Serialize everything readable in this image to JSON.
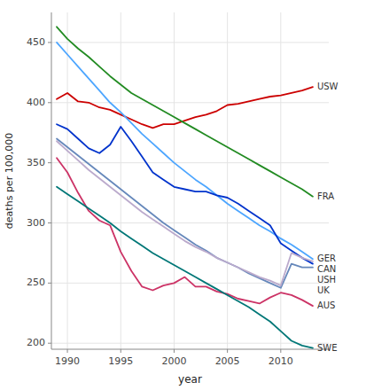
{
  "chart_data": {
    "type": "line",
    "title": "",
    "xlabel": "year",
    "ylabel": "deaths per 100,000",
    "x": [
      1989,
      1990,
      1991,
      1992,
      1993,
      1994,
      1995,
      1996,
      1997,
      1998,
      1999,
      2000,
      2001,
      2002,
      2003,
      2004,
      2005,
      2006,
      2007,
      2008,
      2009,
      2010,
      2011,
      2012,
      2013
    ],
    "xlim": [
      1988.5,
      2014.5
    ],
    "ylim": [
      195,
      475
    ],
    "xticks": [
      1990,
      1995,
      2000,
      2005,
      2010
    ],
    "yticks": [
      200,
      250,
      300,
      350,
      400,
      450
    ],
    "grid": true,
    "series": [
      {
        "name": "USW",
        "color": "#cc0000",
        "values": [
          403,
          408,
          401,
          400,
          396,
          394,
          390,
          386,
          382,
          379,
          382,
          382,
          385,
          388,
          390,
          393,
          398,
          399,
          401,
          403,
          405,
          406,
          408,
          410,
          413
        ]
      },
      {
        "name": "FRA",
        "color": "#228B22",
        "values": [
          463,
          453,
          445,
          438,
          430,
          422,
          415,
          408,
          403,
          398,
          393,
          388,
          383,
          378,
          373,
          368,
          363,
          358,
          353,
          348,
          343,
          338,
          333,
          328,
          322
        ]
      },
      {
        "name": "GER",
        "color": "#4da6ff",
        "values": [
          450,
          440,
          430,
          420,
          410,
          400,
          392,
          383,
          374,
          366,
          358,
          350,
          343,
          336,
          330,
          323,
          316,
          310,
          304,
          298,
          293,
          287,
          282,
          276,
          270
        ]
      },
      {
        "name": "USH",
        "color": "#0033cc",
        "values": [
          382,
          378,
          370,
          362,
          358,
          365,
          380,
          368,
          355,
          342,
          336,
          330,
          328,
          326,
          326,
          323,
          321,
          316,
          310,
          304,
          298,
          283,
          277,
          271,
          266
        ]
      },
      {
        "name": "UK",
        "color": "#6688bb",
        "values": [
          370,
          363,
          356,
          349,
          342,
          335,
          328,
          321,
          314,
          307,
          300,
          294,
          288,
          282,
          277,
          271,
          267,
          263,
          258,
          254,
          250,
          246,
          266,
          263,
          263
        ]
      },
      {
        "name": "CAN",
        "color": "#bbaacc",
        "values": [
          368,
          360,
          352,
          344,
          337,
          330,
          323,
          316,
          309,
          303,
          297,
          291,
          285,
          280,
          276,
          271,
          267,
          263,
          259,
          255,
          252,
          248,
          275,
          271,
          268
        ]
      },
      {
        "name": "AUS",
        "color": "#cc3366",
        "values": [
          354,
          342,
          325,
          310,
          302,
          298,
          276,
          260,
          247,
          244,
          248,
          250,
          255,
          247,
          247,
          243,
          241,
          237,
          235,
          233,
          238,
          242,
          240,
          236,
          231
        ]
      },
      {
        "name": "SWE",
        "color": "#007777",
        "values": [
          330,
          324,
          318,
          312,
          306,
          300,
          293,
          287,
          281,
          275,
          270,
          265,
          260,
          255,
          250,
          245,
          240,
          235,
          230,
          224,
          218,
          210,
          202,
          198,
          196
        ]
      }
    ]
  }
}
